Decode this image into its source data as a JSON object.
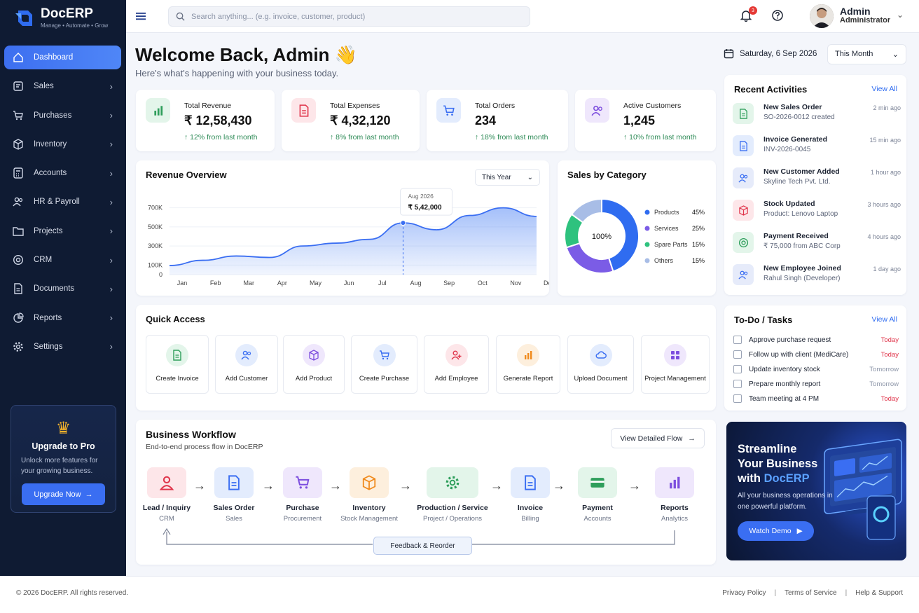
{
  "brand": {
    "name": "DocERP",
    "tagline": "Manage • Automate • Grow"
  },
  "sidebar": {
    "items": [
      {
        "label": "Dashboard",
        "icon": "home-icon",
        "active": true
      },
      {
        "label": "Sales",
        "icon": "tag-icon"
      },
      {
        "label": "Purchases",
        "icon": "cart-icon"
      },
      {
        "label": "Inventory",
        "icon": "box-icon"
      },
      {
        "label": "Accounts",
        "icon": "calculator-icon"
      },
      {
        "label": "HR & Payroll",
        "icon": "people-icon"
      },
      {
        "label": "Projects",
        "icon": "folder-icon"
      },
      {
        "label": "CRM",
        "icon": "target-icon"
      },
      {
        "label": "Documents",
        "icon": "document-icon"
      },
      {
        "label": "Reports",
        "icon": "pie-chart-icon"
      },
      {
        "label": "Settings",
        "icon": "gear-icon"
      }
    ],
    "upgrade": {
      "title": "Upgrade to Pro",
      "text": "Unlock more features for your growing business.",
      "button": "Upgrade Now"
    }
  },
  "topbar": {
    "search_placeholder": "Search anything... (e.g. invoice, customer, product)",
    "notification_count": "3",
    "user_name": "Admin",
    "user_role": "Administrator"
  },
  "welcome": {
    "title": "Welcome Back, Admin 👋",
    "subtitle": "Here's what's happening with your business today.",
    "date": "Saturday, 6 Sep 2026",
    "period": "This Month"
  },
  "stats": [
    {
      "label": "Total Revenue",
      "value": "₹ 12,58,430",
      "change": "12% from last month",
      "color": "#2e9e5b",
      "bg": "#e3f5ea"
    },
    {
      "label": "Total Expenses",
      "value": "₹ 4,32,120",
      "change": "8% from last month",
      "color": "#e0354b",
      "bg": "#fde6e9"
    },
    {
      "label": "Total Orders",
      "value": "234",
      "change": "18% from last month",
      "color": "#3a6ef2",
      "bg": "#e3ecfd"
    },
    {
      "label": "Active Customers",
      "value": "1,245",
      "change": "10% from last month",
      "color": "#7c4dde",
      "bg": "#efe7fc"
    }
  ],
  "revenue": {
    "title": "Revenue Overview",
    "period": "This Year",
    "tooltip_month": "Aug 2026",
    "tooltip_value": "₹ 5,42,000",
    "chart_data": {
      "type": "area",
      "categories": [
        "Jan",
        "Feb",
        "Mar",
        "Apr",
        "May",
        "Jun",
        "Jul",
        "Aug",
        "Sep",
        "Oct",
        "Nov",
        "Dec"
      ],
      "values": [
        95,
        150,
        195,
        180,
        300,
        330,
        370,
        542,
        470,
        620,
        700,
        610
      ],
      "yticks": [
        "0",
        "100K",
        "300K",
        "500K",
        "700K"
      ],
      "ylim": [
        0,
        800
      ]
    }
  },
  "category": {
    "title": "Sales by Category",
    "center": "100%",
    "chart_data": {
      "type": "pie",
      "series": [
        {
          "name": "Products",
          "value": 45,
          "label": "45%",
          "color": "#2f6cf0"
        },
        {
          "name": "Services",
          "value": 25,
          "label": "25%",
          "color": "#7b5ce6"
        },
        {
          "name": "Spare Parts",
          "value": 15,
          "label": "15%",
          "color": "#2ec27e"
        },
        {
          "name": "Others",
          "value": 15,
          "label": "15%",
          "color": "#a8bde6"
        }
      ]
    }
  },
  "activities": {
    "title": "Recent Activities",
    "view_all": "View All",
    "items": [
      {
        "title": "New Sales Order",
        "sub": "SO-2026-0012 created",
        "time": "2 min ago",
        "color": "#2e9e5b",
        "bg": "#e3f5ea"
      },
      {
        "title": "Invoice Generated",
        "sub": "INV-2026-0045",
        "time": "15 min ago",
        "color": "#3a6ef2",
        "bg": "#e3ecfd"
      },
      {
        "title": "New Customer Added",
        "sub": "Skyline Tech Pvt. Ltd.",
        "time": "1 hour ago",
        "color": "#3a6ef2",
        "bg": "#e6ebfa"
      },
      {
        "title": "Stock Updated",
        "sub": "Product: Lenovo Laptop",
        "time": "3 hours ago",
        "color": "#e0354b",
        "bg": "#fde6e9"
      },
      {
        "title": "Payment Received",
        "sub": "₹ 75,000 from ABC Corp",
        "time": "4 hours ago",
        "color": "#2e9e5b",
        "bg": "#e3f5ea"
      },
      {
        "title": "New Employee Joined",
        "sub": "Rahul Singh (Developer)",
        "time": "1 day ago",
        "color": "#3a6ef2",
        "bg": "#e6ebfa"
      }
    ]
  },
  "todo": {
    "title": "To-Do / Tasks",
    "view_all": "View All",
    "items": [
      {
        "text": "Approve purchase request",
        "when": "Today",
        "color": "#e0354b"
      },
      {
        "text": "Follow up with client (MediCare)",
        "when": "Today",
        "color": "#e0354b"
      },
      {
        "text": "Update inventory stock",
        "when": "Tomorrow",
        "color": "#8a93a6"
      },
      {
        "text": "Prepare monthly report",
        "when": "Tomorrow",
        "color": "#8a93a6"
      },
      {
        "text": "Team meeting at 4 PM",
        "when": "Today",
        "color": "#e0354b"
      }
    ]
  },
  "quick": {
    "title": "Quick Access",
    "items": [
      {
        "label": "Create Invoice",
        "color": "#2e9e5b",
        "bg": "#e3f5ea",
        "icon": "document-icon"
      },
      {
        "label": "Add Customer",
        "color": "#3a6ef2",
        "bg": "#e3ecfd",
        "icon": "people-icon"
      },
      {
        "label": "Add Product",
        "color": "#7c4dde",
        "bg": "#efe7fc",
        "icon": "box-icon"
      },
      {
        "label": "Create Purchase",
        "color": "#3a6ef2",
        "bg": "#e3ecfd",
        "icon": "cart-icon"
      },
      {
        "label": "Add Employee",
        "color": "#e0354b",
        "bg": "#fde6e9",
        "icon": "add-user-icon"
      },
      {
        "label": "Generate Report",
        "color": "#f08a1c",
        "bg": "#fdefdd",
        "icon": "bar-chart-icon"
      },
      {
        "label": "Upload Document",
        "color": "#3a6ef2",
        "bg": "#e3ecfd",
        "icon": "cloud-upload-icon"
      },
      {
        "label": "Project Management",
        "color": "#7c4dde",
        "bg": "#efe7fc",
        "icon": "grid-icon"
      }
    ]
  },
  "workflow": {
    "title": "Business Workflow",
    "subtitle": "End-to-end process flow in DocERP",
    "button": "View Detailed Flow",
    "feedback": "Feedback & Reorder",
    "steps": [
      {
        "title": "Lead / Inquiry",
        "sub": "CRM",
        "color": "#e0354b",
        "bg": "#fde6e9",
        "icon": "user-icon"
      },
      {
        "title": "Sales Order",
        "sub": "Sales",
        "color": "#3a6ef2",
        "bg": "#e3ecfd",
        "icon": "document-icon"
      },
      {
        "title": "Purchase",
        "sub": "Procurement",
        "color": "#7c4dde",
        "bg": "#efe7fc",
        "icon": "cart-icon"
      },
      {
        "title": "Inventory",
        "sub": "Stock Management",
        "color": "#f08a1c",
        "bg": "#fdefdd",
        "icon": "box-icon"
      },
      {
        "title": "Production / Service",
        "sub": "Project / Operations",
        "color": "#2e9e5b",
        "bg": "#e3f5ea",
        "icon": "gear-icon"
      },
      {
        "title": "Invoice",
        "sub": "Billing",
        "color": "#3a6ef2",
        "bg": "#e3ecfd",
        "icon": "document-icon"
      },
      {
        "title": "Payment",
        "sub": "Accounts",
        "color": "#2e9e5b",
        "bg": "#e3f5ea",
        "icon": "card-icon"
      },
      {
        "title": "Reports",
        "sub": "Analytics",
        "color": "#7c4dde",
        "bg": "#efe7fc",
        "icon": "bar-chart-icon"
      }
    ]
  },
  "promo": {
    "line1": "Streamline",
    "line2": "Your Business",
    "line3a": "with ",
    "line3b": "DocERP",
    "text": "All your business operations in one powerful platform.",
    "button": "Watch Demo"
  },
  "footer": {
    "copyright": "© 2026 DocERP. All rights reserved.",
    "links": [
      "Privacy Policy",
      "Terms of Service",
      "Help & Support"
    ]
  }
}
